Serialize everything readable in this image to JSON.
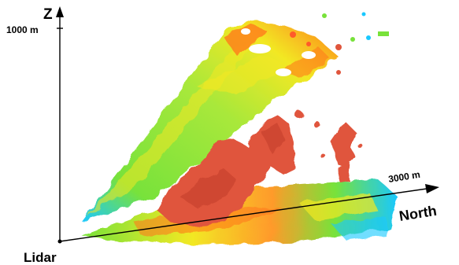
{
  "labels": {
    "z_axis": "Z",
    "z_tick": "1000 m",
    "origin": "Lidar",
    "x_tick": "3000 m",
    "x_axis": "North"
  },
  "colors": {
    "background": "#ffffff",
    "scan_low": "#19c8ff",
    "scan_mid": "#78e23a",
    "scan_high": "#f2e824",
    "scan_peak": "#ff7a1a",
    "plume": "#e0553c",
    "axis": "#000000"
  }
}
